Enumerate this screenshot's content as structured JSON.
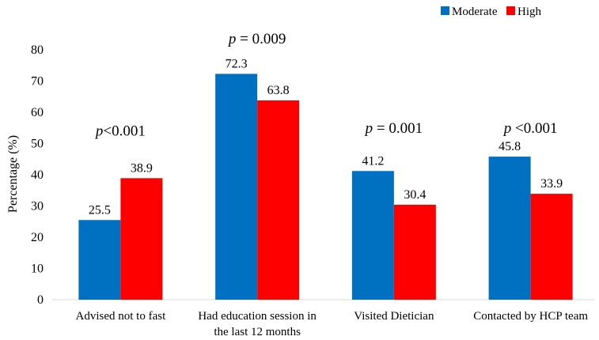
{
  "chart_data": {
    "type": "bar",
    "title": "",
    "xlabel": "",
    "ylabel": "Percentage (%)",
    "ylim": [
      0,
      80
    ],
    "yticks": [
      0,
      10,
      20,
      30,
      40,
      50,
      60,
      70,
      80
    ],
    "grid": false,
    "legend_position": "top-right",
    "categories": [
      [
        "Advised not to fast"
      ],
      [
        "Had education session in",
        "the last 12 months"
      ],
      [
        "Visited Dietician"
      ],
      [
        "Contacted by HCP team"
      ]
    ],
    "series": [
      {
        "name": "Moderate",
        "color": "#0070C0",
        "values": [
          25.5,
          72.3,
          41.2,
          45.8
        ],
        "labels": [
          "25.5",
          "72.3",
          "41.2",
          "45.8"
        ]
      },
      {
        "name": "High",
        "color": "#FF0000",
        "values": [
          38.9,
          63.8,
          30.4,
          33.9
        ],
        "labels": [
          "38.9",
          "63.8",
          "30.4",
          "33.9"
        ]
      }
    ],
    "annotations": [
      {
        "category_index": 0,
        "italic": "p",
        "text": "<0.001",
        "at_value": 54
      },
      {
        "category_index": 1,
        "italic": "p",
        "text": " = 0.009",
        "at_value": 83.5
      },
      {
        "category_index": 2,
        "italic": "p",
        "text": " = 0.001",
        "at_value": 55
      },
      {
        "category_index": 3,
        "italic": "p",
        "text": " <0.001",
        "at_value": 55
      }
    ]
  }
}
